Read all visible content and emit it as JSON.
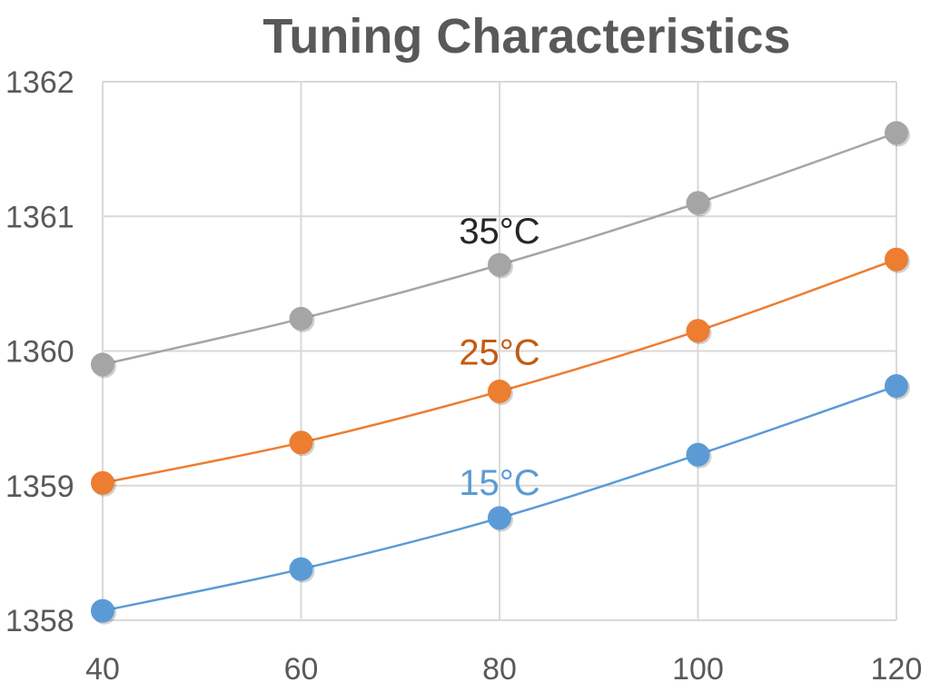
{
  "chart_data": {
    "type": "line",
    "title": "Tuning Characteristics",
    "xlabel": "",
    "ylabel": "",
    "x": [
      40,
      60,
      80,
      100,
      120
    ],
    "xlim": [
      40,
      120
    ],
    "ylim": [
      1358,
      1362
    ],
    "x_ticks": [
      "40",
      "60",
      "80",
      "100",
      "120"
    ],
    "y_ticks": [
      "1358",
      "1359",
      "1360",
      "1361",
      "1362"
    ],
    "grid": true,
    "legend": "none",
    "series": [
      {
        "name": "15°C",
        "color": "#5b9bd5",
        "values": [
          1358.07,
          1358.38,
          1358.76,
          1359.23,
          1359.74
        ]
      },
      {
        "name": "25°C",
        "color": "#ed7d31",
        "values": [
          1359.02,
          1359.32,
          1359.7,
          1360.15,
          1360.68
        ]
      },
      {
        "name": "35°C",
        "color": "#a5a5a5",
        "values": [
          1359.9,
          1360.24,
          1360.64,
          1361.1,
          1361.62
        ]
      }
    ],
    "annotations": [
      {
        "text": "35°C",
        "x": 80,
        "y": 1360.8,
        "color": "#262626"
      },
      {
        "text": "25°C",
        "x": 80,
        "y": 1359.9,
        "color": "#c55a11"
      },
      {
        "text": "15°C",
        "x": 80,
        "y": 1358.93,
        "color": "#5b9bd5"
      }
    ]
  }
}
